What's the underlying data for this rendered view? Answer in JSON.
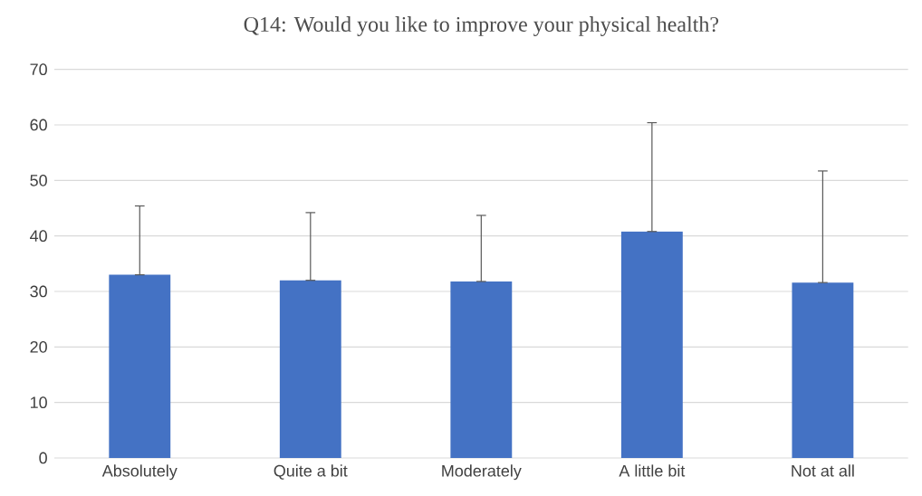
{
  "chart_data": {
    "type": "bar",
    "title": "Q14: Would you like to improve your physical health?",
    "categories": [
      "Absolutely",
      "Quite a bit",
      "Moderately",
      "A little bit",
      "Not at all"
    ],
    "values": [
      33,
      32,
      31.8,
      40.8,
      31.6
    ],
    "errors": [
      [
        33,
        45.4
      ],
      [
        32,
        44.2
      ],
      [
        31.8,
        43.7
      ],
      [
        40.8,
        60.4
      ],
      [
        31.6,
        51.7
      ]
    ],
    "color": "#4472c4",
    "ylim": [
      0,
      70
    ],
    "yticks": [
      0,
      10,
      20,
      30,
      40,
      50,
      60,
      70
    ],
    "grid": "y"
  }
}
